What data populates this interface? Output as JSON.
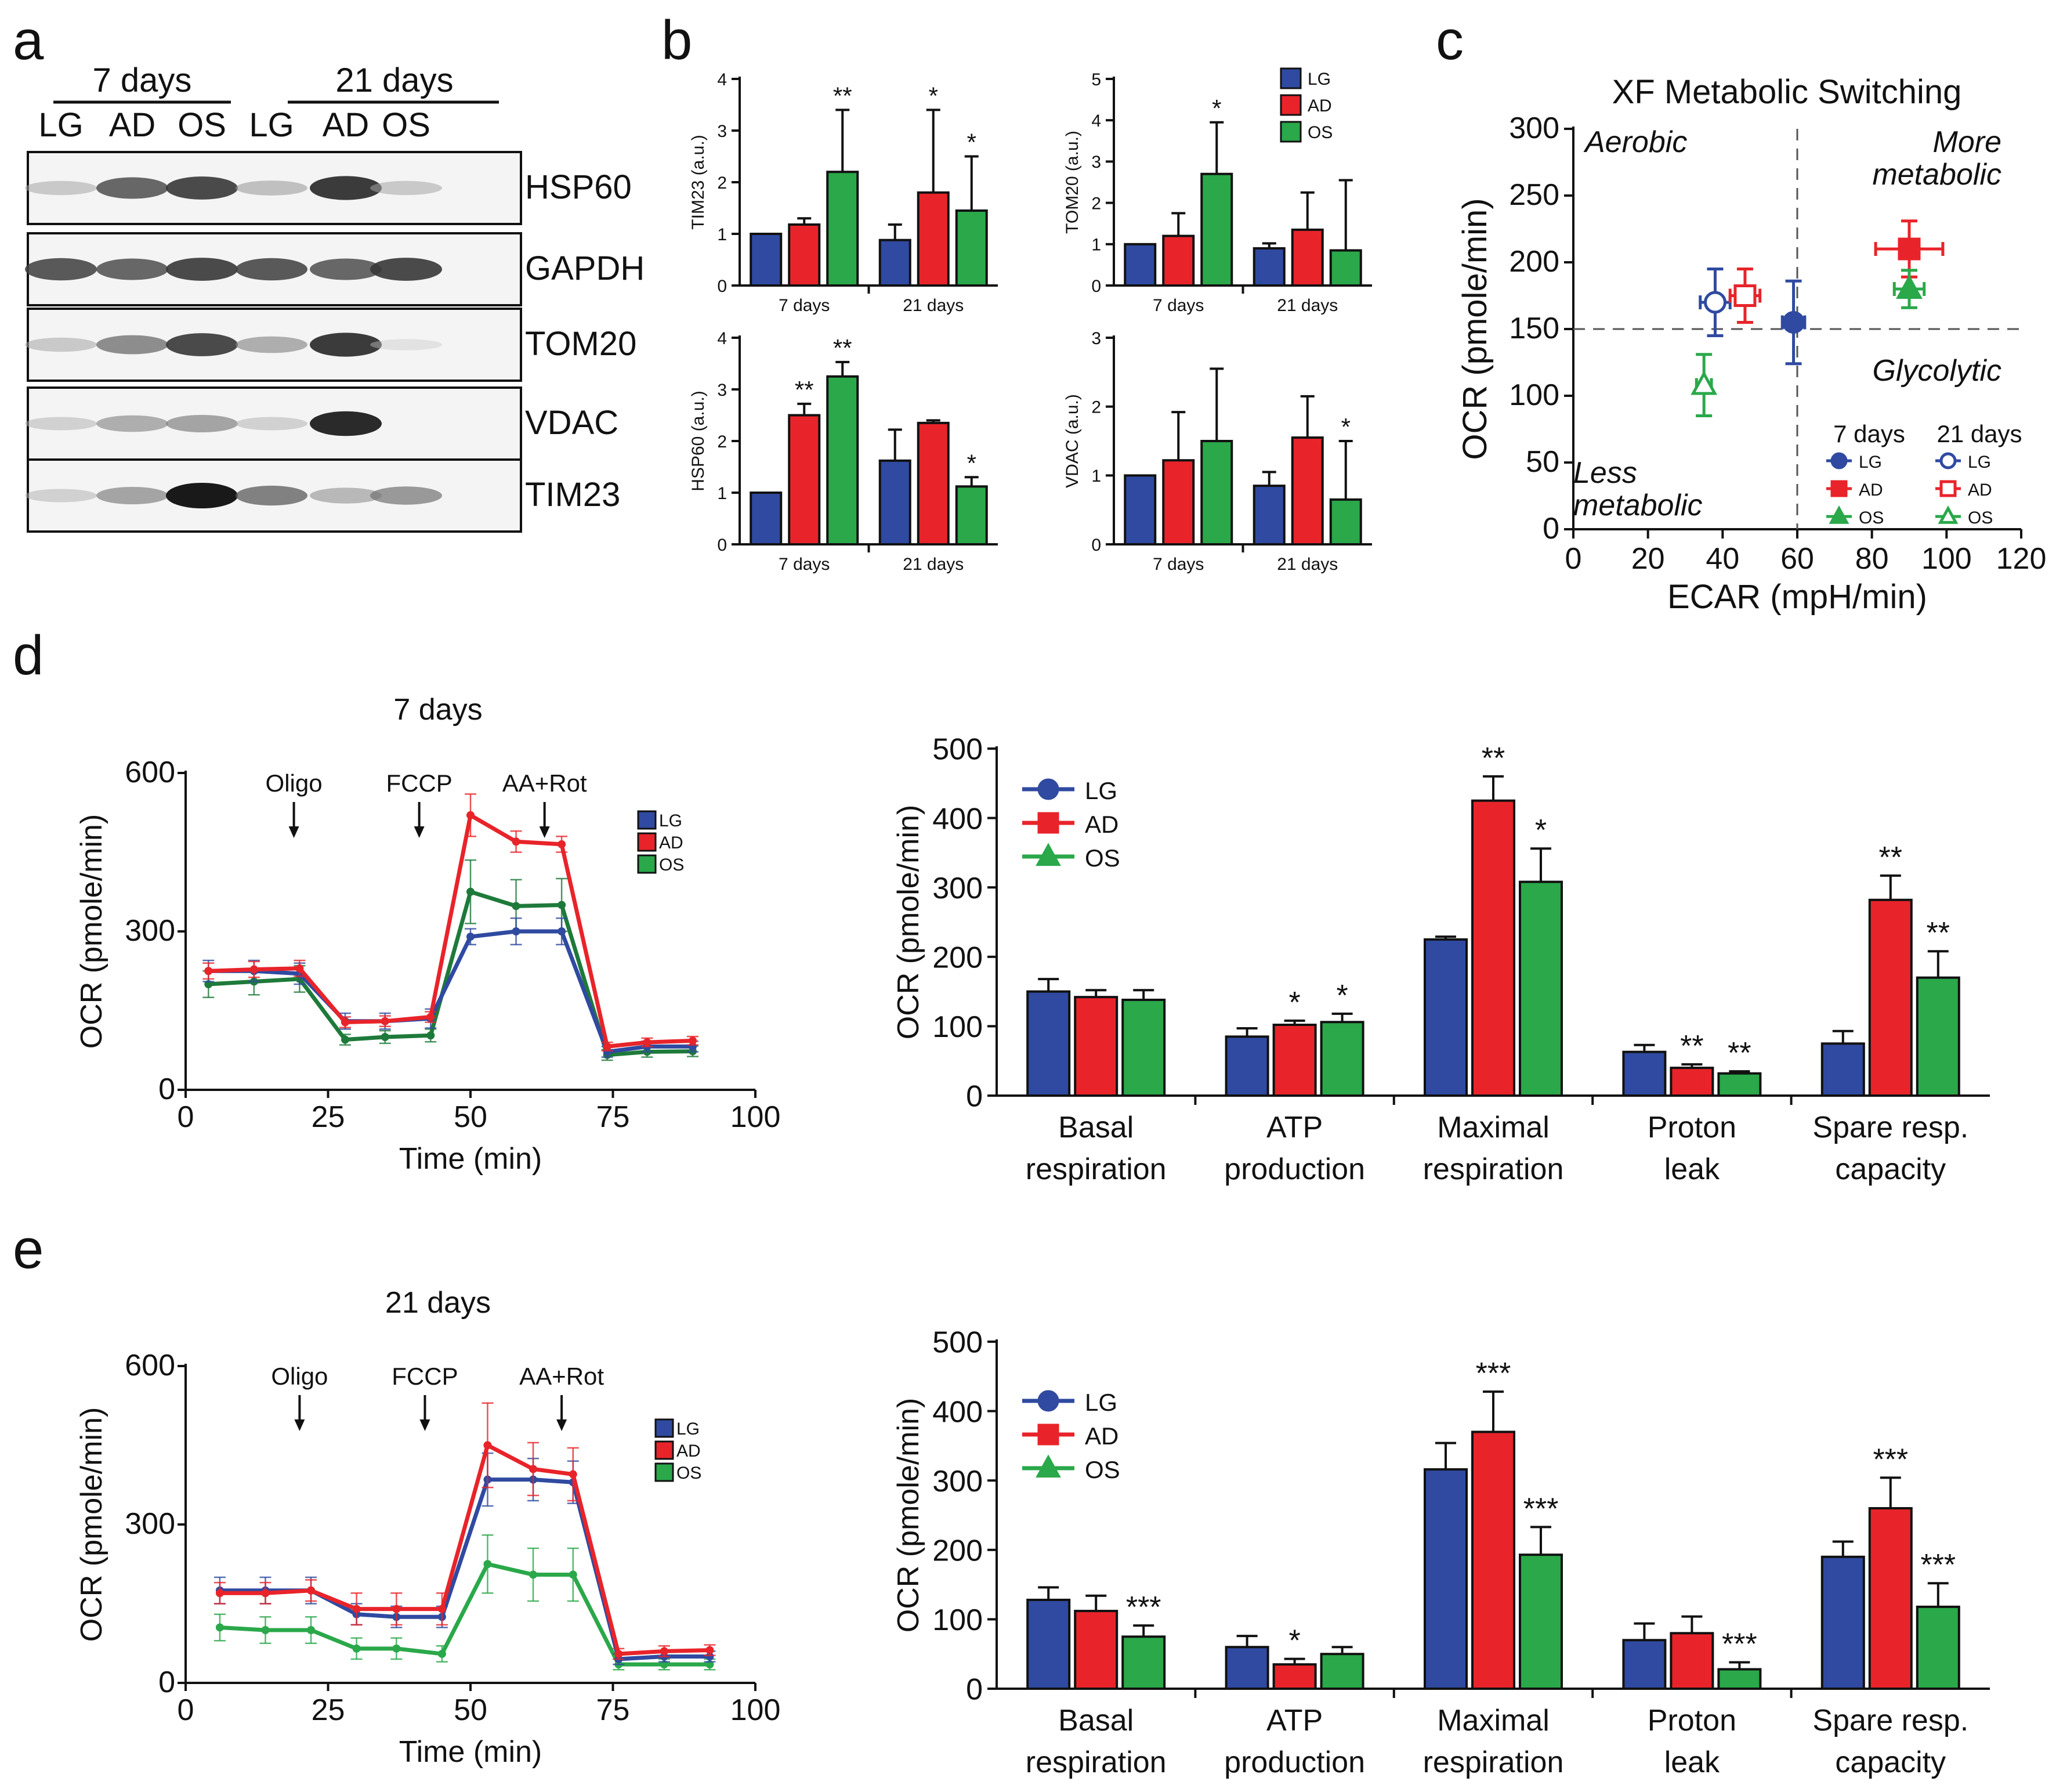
{
  "colors": {
    "LG": "#2f4aa0",
    "AD": "#e8242a",
    "OS": "#2aa84a",
    "OS_line_7d": "#1e7a3a"
  },
  "panel_letters": [
    "a",
    "b",
    "c",
    "d",
    "e"
  ],
  "blot": {
    "groups": [
      "7 days",
      "21 days"
    ],
    "lanes": [
      "LG",
      "AD",
      "OS",
      "LG",
      "AD",
      "OS"
    ],
    "rows": [
      {
        "name": "HSP60",
        "intensity": [
          0.3,
          0.75,
          0.85,
          0.35,
          0.9,
          0.3
        ]
      },
      {
        "name": "GAPDH",
        "intensity": [
          0.8,
          0.75,
          0.85,
          0.8,
          0.75,
          0.85
        ]
      },
      {
        "name": "TOM20",
        "intensity": [
          0.3,
          0.6,
          0.85,
          0.45,
          0.9,
          0.12
        ]
      },
      {
        "name": "VDAC",
        "intensity": [
          0.25,
          0.45,
          0.5,
          0.25,
          0.95,
          0.0
        ]
      },
      {
        "name": "TIM23",
        "intensity": [
          0.25,
          0.5,
          1.0,
          0.65,
          0.4,
          0.55
        ]
      }
    ]
  },
  "chart_data": [
    {
      "id": "b-tim23",
      "type": "bar",
      "ylabel": "TIM23 (a.u.)",
      "ylim": [
        0,
        4
      ],
      "yticks": [
        "0",
        "1",
        "2",
        "3",
        "4"
      ],
      "categories": [
        "7 days",
        "21 days"
      ],
      "series": [
        {
          "name": "LG",
          "values": [
            1.0,
            0.88
          ],
          "err": [
            0,
            0.3
          ]
        },
        {
          "name": "AD",
          "values": [
            1.18,
            1.8
          ],
          "err": [
            0.12,
            1.6
          ]
        },
        {
          "name": "OS",
          "values": [
            2.2,
            1.45
          ],
          "err": [
            1.2,
            1.05
          ]
        }
      ],
      "sig": [
        [
          "",
          "",
          "**"
        ],
        [
          "",
          "*",
          "*"
        ]
      ]
    },
    {
      "id": "b-tom20",
      "type": "bar",
      "ylabel": "TOM20 (a.u.)",
      "ylim": [
        0,
        5
      ],
      "yticks": [
        "0",
        "1",
        "2",
        "3",
        "4",
        "5"
      ],
      "categories": [
        "7 days",
        "21 days"
      ],
      "series": [
        {
          "name": "LG",
          "values": [
            1.0,
            0.9
          ],
          "err": [
            0,
            0.12
          ]
        },
        {
          "name": "AD",
          "values": [
            1.2,
            1.35
          ],
          "err": [
            0.55,
            0.9
          ]
        },
        {
          "name": "OS",
          "values": [
            2.7,
            0.85
          ],
          "err": [
            1.25,
            1.7
          ]
        }
      ],
      "sig": [
        [
          "",
          "",
          "*"
        ],
        [
          "",
          "",
          ""
        ]
      ],
      "legend": [
        "LG",
        "AD",
        "OS"
      ]
    },
    {
      "id": "b-hsp60",
      "type": "bar",
      "ylabel": "HSP60 (a.u.)",
      "ylim": [
        0,
        4
      ],
      "yticks": [
        "0",
        "1",
        "2",
        "3",
        "4"
      ],
      "categories": [
        "7 days",
        "21 days"
      ],
      "series": [
        {
          "name": "LG",
          "values": [
            1.0,
            1.62
          ],
          "err": [
            0,
            0.6
          ]
        },
        {
          "name": "AD",
          "values": [
            2.5,
            2.35
          ],
          "err": [
            0.22,
            0.05
          ]
        },
        {
          "name": "OS",
          "values": [
            3.25,
            1.12
          ],
          "err": [
            0.28,
            0.18
          ]
        }
      ],
      "sig": [
        [
          "",
          "**",
          "**"
        ],
        [
          "",
          "",
          "*"
        ]
      ]
    },
    {
      "id": "b-vdac",
      "type": "bar",
      "ylabel": "VDAC (a.u.)",
      "ylim": [
        0,
        3
      ],
      "yticks": [
        "0",
        "1",
        "2",
        "3"
      ],
      "categories": [
        "7 days",
        "21 days"
      ],
      "series": [
        {
          "name": "LG",
          "values": [
            1.0,
            0.85
          ],
          "err": [
            0,
            0.2
          ]
        },
        {
          "name": "AD",
          "values": [
            1.22,
            1.55
          ],
          "err": [
            0.7,
            0.6
          ]
        },
        {
          "name": "OS",
          "values": [
            1.5,
            0.65
          ],
          "err": [
            1.05,
            0.85
          ]
        }
      ],
      "sig": [
        [
          "",
          "",
          ""
        ],
        [
          "",
          "",
          "*"
        ]
      ]
    },
    {
      "id": "c-scatter",
      "type": "scatter",
      "title": "XF Metabolic Switching",
      "xlabel": "ECAR (mpH/min)",
      "ylabel": "OCR (pmole/min)",
      "xlim": [
        0,
        120
      ],
      "ylim": [
        0,
        300
      ],
      "xticks": [
        "0",
        "20",
        "40",
        "60",
        "80",
        "100",
        "120"
      ],
      "yticks": [
        "0",
        "50",
        "100",
        "150",
        "200",
        "250",
        "300"
      ],
      "ref_lines": {
        "x": 60,
        "y": 150
      },
      "quadrant_labels": [
        {
          "text": [
            "Aerobic"
          ],
          "pos": "top-left"
        },
        {
          "text": [
            "More",
            "metabolic"
          ],
          "pos": "top-right"
        },
        {
          "text": [
            "Glycolytic"
          ],
          "pos": "bottom-right"
        },
        {
          "text": [
            "Less",
            "metabolic"
          ],
          "pos": "bottom-left"
        }
      ],
      "legend_headers": [
        "7 days",
        "21 days"
      ],
      "legend_labels": [
        "LG",
        "AD",
        "OS"
      ],
      "points": [
        {
          "series": "LG",
          "time": "7 days",
          "marker": "circle",
          "filled": true,
          "x": 59,
          "y": 155,
          "xerr": 3,
          "yerr": 31
        },
        {
          "series": "AD",
          "time": "7 days",
          "marker": "square",
          "filled": true,
          "x": 90,
          "y": 210,
          "xerr": 9,
          "yerr": 21
        },
        {
          "series": "OS",
          "time": "7 days",
          "marker": "triangle",
          "filled": true,
          "x": 90,
          "y": 180,
          "xerr": 4,
          "yerr": 14
        },
        {
          "series": "LG",
          "time": "21 days",
          "marker": "circle",
          "filled": false,
          "x": 38,
          "y": 170,
          "xerr": 4,
          "yerr": 25
        },
        {
          "series": "AD",
          "time": "21 days",
          "marker": "square",
          "filled": false,
          "x": 46,
          "y": 175,
          "xerr": 4,
          "yerr": 20
        },
        {
          "series": "OS",
          "time": "21 days",
          "marker": "triangle",
          "filled": false,
          "x": 35,
          "y": 108,
          "xerr": 2,
          "yerr": 23
        }
      ]
    },
    {
      "id": "d-line",
      "type": "line",
      "title": "7 days",
      "xlabel": "Time (min)",
      "ylabel": "OCR (pmole/min)",
      "xlim": [
        0,
        100
      ],
      "ylim": [
        0,
        600
      ],
      "xticks": [
        "0",
        "25",
        "50",
        "75",
        "100"
      ],
      "yticks": [
        "0",
        "300",
        "600"
      ],
      "injections": [
        {
          "label": "Oligo",
          "x": 19
        },
        {
          "label": "FCCP",
          "x": 41
        },
        {
          "label": "AA+Rot",
          "x": 63
        }
      ],
      "x": [
        4,
        12,
        20,
        28,
        35,
        43,
        50,
        58,
        66,
        74,
        81,
        89
      ],
      "series": [
        {
          "name": "LG",
          "values": [
            225,
            225,
            220,
            130,
            130,
            135,
            290,
            300,
            300,
            72,
            82,
            82
          ],
          "err": [
            20,
            20,
            20,
            15,
            15,
            18,
            15,
            25,
            25,
            10,
            10,
            10
          ]
        },
        {
          "name": "AD",
          "values": [
            225,
            228,
            230,
            128,
            130,
            138,
            520,
            470,
            465,
            82,
            90,
            93
          ],
          "err": [
            15,
            15,
            15,
            10,
            10,
            10,
            40,
            20,
            15,
            8,
            8,
            8
          ]
        },
        {
          "name": "OS",
          "values": [
            200,
            205,
            210,
            95,
            100,
            103,
            375,
            348,
            350,
            66,
            72,
            73
          ],
          "err": [
            25,
            25,
            25,
            10,
            12,
            12,
            60,
            50,
            50,
            10,
            10,
            10
          ]
        }
      ],
      "legend": [
        "LG",
        "AD",
        "OS"
      ]
    },
    {
      "id": "d-bar",
      "type": "bar",
      "ylabel": "OCR (pmole/min)",
      "ylim": [
        0,
        500
      ],
      "yticks": [
        "0",
        "100",
        "200",
        "300",
        "400",
        "500"
      ],
      "categories": [
        [
          "Basal",
          "respiration"
        ],
        [
          "ATP",
          "production"
        ],
        [
          "Maximal",
          "respiration"
        ],
        [
          "Proton",
          "leak"
        ],
        [
          "Spare resp.",
          "capacity"
        ]
      ],
      "series": [
        {
          "name": "LG",
          "values": [
            150,
            85,
            225,
            63,
            75
          ],
          "err": [
            18,
            12,
            4,
            10,
            18
          ]
        },
        {
          "name": "AD",
          "values": [
            142,
            102,
            425,
            40,
            282
          ],
          "err": [
            10,
            6,
            35,
            5,
            35
          ]
        },
        {
          "name": "OS",
          "values": [
            138,
            106,
            308,
            32,
            170
          ],
          "err": [
            14,
            12,
            48,
            3,
            38
          ]
        }
      ],
      "sig": [
        [
          "",
          "",
          ""
        ],
        [
          "",
          "*",
          "*"
        ],
        [
          "",
          "**",
          "*"
        ],
        [
          "",
          "**",
          "**"
        ],
        [
          "",
          "**",
          "**"
        ]
      ],
      "legend": [
        "LG",
        "AD",
        "OS"
      ]
    },
    {
      "id": "e-line",
      "type": "line",
      "title": "21 days",
      "xlabel": "Time (min)",
      "ylabel": "OCR (pmole/min)",
      "xlim": [
        0,
        100
      ],
      "ylim": [
        0,
        600
      ],
      "xticks": [
        "0",
        "25",
        "50",
        "75",
        "100"
      ],
      "yticks": [
        "0",
        "300",
        "600"
      ],
      "injections": [
        {
          "label": "Oligo",
          "x": 20
        },
        {
          "label": "FCCP",
          "x": 42
        },
        {
          "label": "AA+Rot",
          "x": 66
        }
      ],
      "x": [
        6,
        14,
        22,
        30,
        37,
        45,
        53,
        61,
        68,
        76,
        84,
        92
      ],
      "series": [
        {
          "name": "LG",
          "values": [
            175,
            175,
            175,
            130,
            125,
            125,
            385,
            385,
            380,
            45,
            50,
            50
          ],
          "err": [
            25,
            25,
            25,
            20,
            20,
            20,
            50,
            40,
            40,
            10,
            10,
            10
          ]
        },
        {
          "name": "AD",
          "values": [
            170,
            170,
            175,
            140,
            140,
            140,
            450,
            405,
            395,
            55,
            60,
            62
          ],
          "err": [
            20,
            20,
            20,
            30,
            30,
            30,
            80,
            50,
            50,
            10,
            10,
            10
          ]
        },
        {
          "name": "OS",
          "values": [
            105,
            100,
            100,
            65,
            65,
            55,
            225,
            205,
            205,
            35,
            35,
            35
          ],
          "err": [
            25,
            25,
            25,
            20,
            20,
            15,
            55,
            50,
            50,
            10,
            10,
            10
          ]
        }
      ],
      "legend": [
        "LG",
        "AD",
        "OS"
      ]
    },
    {
      "id": "e-bar",
      "type": "bar",
      "ylabel": "OCR (pmole/min)",
      "ylim": [
        0,
        500
      ],
      "yticks": [
        "0",
        "100",
        "200",
        "300",
        "400",
        "500"
      ],
      "categories": [
        [
          "Basal",
          "respiration"
        ],
        [
          "ATP",
          "production"
        ],
        [
          "Maximal",
          "respiration"
        ],
        [
          "Proton",
          "leak"
        ],
        [
          "Spare resp.",
          "capacity"
        ]
      ],
      "series": [
        {
          "name": "LG",
          "values": [
            128,
            60,
            316,
            70,
            190
          ],
          "err": [
            18,
            16,
            38,
            24,
            22
          ]
        },
        {
          "name": "AD",
          "values": [
            112,
            35,
            370,
            80,
            260
          ],
          "err": [
            22,
            8,
            58,
            24,
            44
          ]
        },
        {
          "name": "OS",
          "values": [
            75,
            50,
            193,
            28,
            118
          ],
          "err": [
            16,
            10,
            40,
            10,
            34
          ]
        }
      ],
      "sig": [
        [
          "",
          "",
          "***"
        ],
        [
          "",
          "*",
          ""
        ],
        [
          "",
          "***",
          "***"
        ],
        [
          "",
          "",
          "***"
        ],
        [
          "",
          "***",
          "***"
        ]
      ],
      "legend": [
        "LG",
        "AD",
        "OS"
      ]
    }
  ]
}
